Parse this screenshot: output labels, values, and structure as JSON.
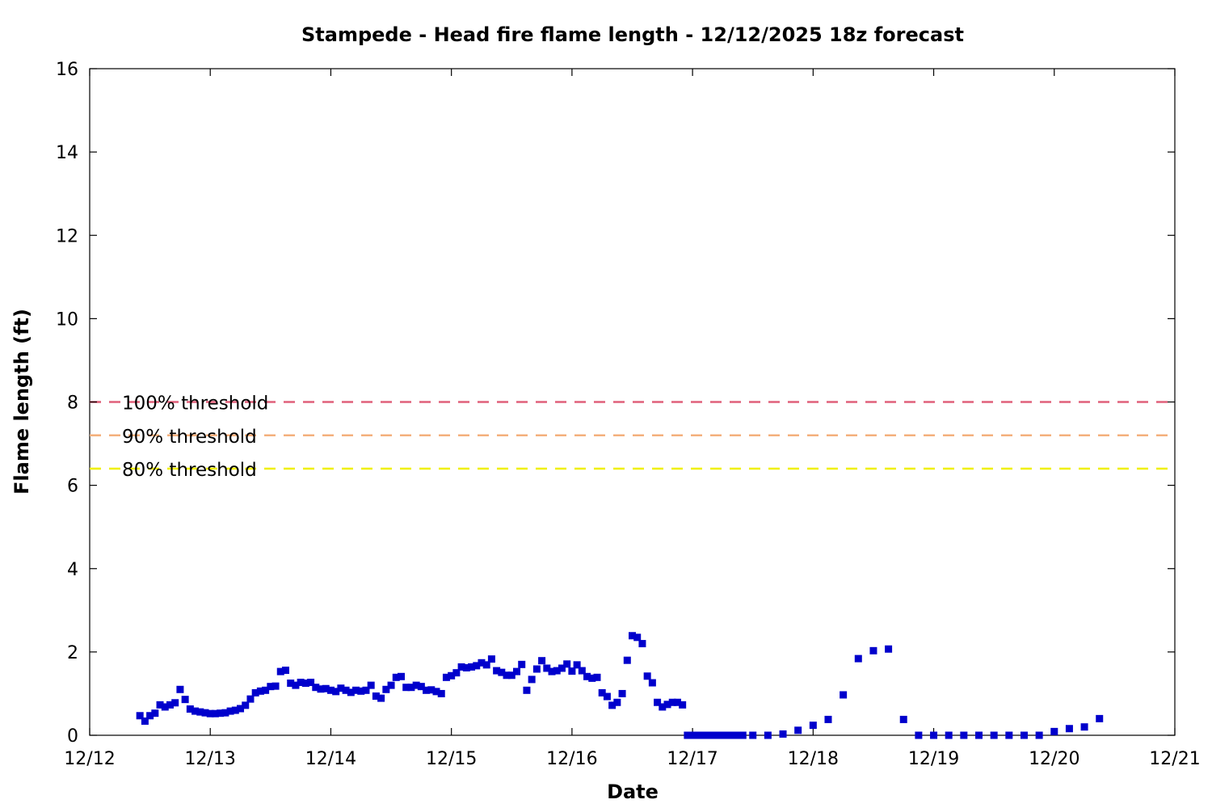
{
  "chart_data": {
    "type": "scatter",
    "title": "Stampede - Head fire flame length - 12/12/2025 18z forecast",
    "xlabel": "Date",
    "ylabel": "Flame length (ft)",
    "xlim": [
      "2025-12-12 00:00",
      "2025-12-21 00:00"
    ],
    "ylim": [
      0,
      16
    ],
    "x_ticks": [
      "12/12",
      "12/13",
      "12/14",
      "12/15",
      "12/16",
      "12/17",
      "12/18",
      "12/19",
      "12/20",
      "12/21"
    ],
    "y_ticks": [
      "0",
      "2",
      "4",
      "6",
      "8",
      "10",
      "12",
      "14",
      "16"
    ],
    "grid": false,
    "marker_color": "#0000cc",
    "reference_lines": [
      {
        "label": "100% threshold",
        "value": 8.0,
        "color": "#e0607a"
      },
      {
        "label": "90% threshold",
        "value": 7.2,
        "color": "#f4b07c"
      },
      {
        "label": "80% threshold",
        "value": 6.4,
        "color": "#f0f000"
      }
    ],
    "series": [
      {
        "points": [
          [
            "2025-12-12 10:00",
            0.47
          ],
          [
            "2025-12-12 11:00",
            0.34
          ],
          [
            "2025-12-12 12:00",
            0.47
          ],
          [
            "2025-12-12 13:00",
            0.53
          ],
          [
            "2025-12-12 14:00",
            0.73
          ],
          [
            "2025-12-12 15:00",
            0.68
          ],
          [
            "2025-12-12 16:00",
            0.73
          ],
          [
            "2025-12-12 17:00",
            0.78
          ],
          [
            "2025-12-12 18:00",
            1.1
          ],
          [
            "2025-12-12 19:00",
            0.86
          ],
          [
            "2025-12-12 20:00",
            0.63
          ],
          [
            "2025-12-12 21:00",
            0.58
          ],
          [
            "2025-12-12 22:00",
            0.56
          ],
          [
            "2025-12-12 23:00",
            0.54
          ],
          [
            "2025-12-13 00:00",
            0.52
          ],
          [
            "2025-12-13 01:00",
            0.52
          ],
          [
            "2025-12-13 02:00",
            0.53
          ],
          [
            "2025-12-13 03:00",
            0.54
          ],
          [
            "2025-12-13 04:00",
            0.58
          ],
          [
            "2025-12-13 05:00",
            0.6
          ],
          [
            "2025-12-13 06:00",
            0.64
          ],
          [
            "2025-12-13 07:00",
            0.72
          ],
          [
            "2025-12-13 08:00",
            0.87
          ],
          [
            "2025-12-13 09:00",
            1.02
          ],
          [
            "2025-12-13 10:00",
            1.06
          ],
          [
            "2025-12-13 11:00",
            1.08
          ],
          [
            "2025-12-13 12:00",
            1.17
          ],
          [
            "2025-12-13 13:00",
            1.18
          ],
          [
            "2025-12-13 14:00",
            1.53
          ],
          [
            "2025-12-13 15:00",
            1.56
          ],
          [
            "2025-12-13 16:00",
            1.25
          ],
          [
            "2025-12-13 17:00",
            1.2
          ],
          [
            "2025-12-13 18:00",
            1.27
          ],
          [
            "2025-12-13 19:00",
            1.25
          ],
          [
            "2025-12-13 20:00",
            1.27
          ],
          [
            "2025-12-13 21:00",
            1.15
          ],
          [
            "2025-12-13 22:00",
            1.11
          ],
          [
            "2025-12-13 23:00",
            1.12
          ],
          [
            "2025-12-14 00:00",
            1.08
          ],
          [
            "2025-12-14 01:00",
            1.05
          ],
          [
            "2025-12-14 02:00",
            1.13
          ],
          [
            "2025-12-14 03:00",
            1.08
          ],
          [
            "2025-12-14 04:00",
            1.03
          ],
          [
            "2025-12-14 05:00",
            1.08
          ],
          [
            "2025-12-14 06:00",
            1.06
          ],
          [
            "2025-12-14 07:00",
            1.08
          ],
          [
            "2025-12-14 08:00",
            1.2
          ],
          [
            "2025-12-14 09:00",
            0.94
          ],
          [
            "2025-12-14 10:00",
            0.89
          ],
          [
            "2025-12-14 11:00",
            1.1
          ],
          [
            "2025-12-14 12:00",
            1.2
          ],
          [
            "2025-12-14 13:00",
            1.39
          ],
          [
            "2025-12-14 14:00",
            1.41
          ],
          [
            "2025-12-14 15:00",
            1.15
          ],
          [
            "2025-12-14 16:00",
            1.15
          ],
          [
            "2025-12-14 17:00",
            1.2
          ],
          [
            "2025-12-14 18:00",
            1.17
          ],
          [
            "2025-12-14 19:00",
            1.08
          ],
          [
            "2025-12-14 20:00",
            1.09
          ],
          [
            "2025-12-14 21:00",
            1.05
          ],
          [
            "2025-12-14 22:00",
            1.0
          ],
          [
            "2025-12-14 23:00",
            1.39
          ],
          [
            "2025-12-15 00:00",
            1.43
          ],
          [
            "2025-12-15 01:00",
            1.5
          ],
          [
            "2025-12-15 02:00",
            1.64
          ],
          [
            "2025-12-15 03:00",
            1.62
          ],
          [
            "2025-12-15 04:00",
            1.64
          ],
          [
            "2025-12-15 05:00",
            1.67
          ],
          [
            "2025-12-15 06:00",
            1.74
          ],
          [
            "2025-12-15 07:00",
            1.69
          ],
          [
            "2025-12-15 08:00",
            1.83
          ],
          [
            "2025-12-15 09:00",
            1.55
          ],
          [
            "2025-12-15 10:00",
            1.51
          ],
          [
            "2025-12-15 11:00",
            1.44
          ],
          [
            "2025-12-15 12:00",
            1.44
          ],
          [
            "2025-12-15 13:00",
            1.53
          ],
          [
            "2025-12-15 14:00",
            1.7
          ],
          [
            "2025-12-15 15:00",
            1.08
          ],
          [
            "2025-12-15 16:00",
            1.34
          ],
          [
            "2025-12-15 17:00",
            1.59
          ],
          [
            "2025-12-15 18:00",
            1.79
          ],
          [
            "2025-12-15 19:00",
            1.61
          ],
          [
            "2025-12-15 20:00",
            1.53
          ],
          [
            "2025-12-15 21:00",
            1.55
          ],
          [
            "2025-12-15 22:00",
            1.61
          ],
          [
            "2025-12-15 23:00",
            1.71
          ],
          [
            "2025-12-16 00:00",
            1.54
          ],
          [
            "2025-12-16 01:00",
            1.69
          ],
          [
            "2025-12-16 02:00",
            1.55
          ],
          [
            "2025-12-16 03:00",
            1.41
          ],
          [
            "2025-12-16 04:00",
            1.37
          ],
          [
            "2025-12-16 05:00",
            1.39
          ],
          [
            "2025-12-16 06:00",
            1.02
          ],
          [
            "2025-12-16 07:00",
            0.93
          ],
          [
            "2025-12-16 08:00",
            0.72
          ],
          [
            "2025-12-16 09:00",
            0.79
          ],
          [
            "2025-12-16 10:00",
            1.0
          ],
          [
            "2025-12-16 11:00",
            1.8
          ],
          [
            "2025-12-16 12:00",
            2.39
          ],
          [
            "2025-12-16 13:00",
            2.35
          ],
          [
            "2025-12-16 14:00",
            2.2
          ],
          [
            "2025-12-16 15:00",
            1.42
          ],
          [
            "2025-12-16 16:00",
            1.26
          ],
          [
            "2025-12-16 17:00",
            0.79
          ],
          [
            "2025-12-16 18:00",
            0.68
          ],
          [
            "2025-12-16 19:00",
            0.74
          ],
          [
            "2025-12-16 20:00",
            0.79
          ],
          [
            "2025-12-16 21:00",
            0.79
          ],
          [
            "2025-12-16 22:00",
            0.73
          ],
          [
            "2025-12-16 23:00",
            0.0
          ],
          [
            "2025-12-17 00:00",
            0.0
          ],
          [
            "2025-12-17 01:00",
            0.0
          ],
          [
            "2025-12-17 02:00",
            0.0
          ],
          [
            "2025-12-17 03:00",
            0.0
          ],
          [
            "2025-12-17 04:00",
            0.0
          ],
          [
            "2025-12-17 05:00",
            0.0
          ],
          [
            "2025-12-17 06:00",
            0.0
          ],
          [
            "2025-12-17 07:00",
            0.0
          ],
          [
            "2025-12-17 08:00",
            0.0
          ],
          [
            "2025-12-17 09:00",
            0.0
          ],
          [
            "2025-12-17 10:00",
            0.0
          ],
          [
            "2025-12-17 12:00",
            0.0
          ],
          [
            "2025-12-17 15:00",
            0.0
          ],
          [
            "2025-12-17 18:00",
            0.03
          ],
          [
            "2025-12-17 21:00",
            0.12
          ],
          [
            "2025-12-18 00:00",
            0.24
          ],
          [
            "2025-12-18 03:00",
            0.38
          ],
          [
            "2025-12-18 06:00",
            0.97
          ],
          [
            "2025-12-18 09:00",
            1.84
          ],
          [
            "2025-12-18 12:00",
            2.03
          ],
          [
            "2025-12-18 15:00",
            2.07
          ],
          [
            "2025-12-18 18:00",
            0.38
          ],
          [
            "2025-12-18 21:00",
            0.0
          ],
          [
            "2025-12-19 00:00",
            0.0
          ],
          [
            "2025-12-19 03:00",
            0.0
          ],
          [
            "2025-12-19 06:00",
            0.0
          ],
          [
            "2025-12-19 09:00",
            0.0
          ],
          [
            "2025-12-19 12:00",
            0.0
          ],
          [
            "2025-12-19 15:00",
            0.0
          ],
          [
            "2025-12-19 18:00",
            0.0
          ],
          [
            "2025-12-19 21:00",
            0.0
          ],
          [
            "2025-12-20 00:00",
            0.09
          ],
          [
            "2025-12-20 03:00",
            0.16
          ],
          [
            "2025-12-20 06:00",
            0.2
          ],
          [
            "2025-12-20 09:00",
            0.4
          ]
        ]
      }
    ]
  }
}
